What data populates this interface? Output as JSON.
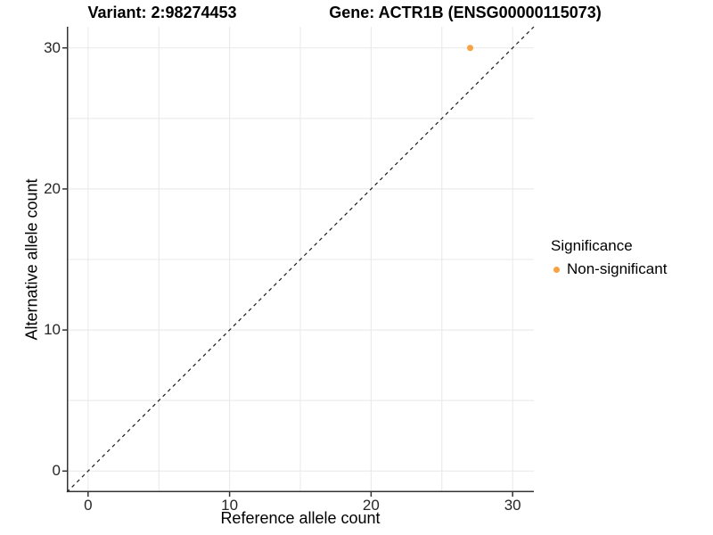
{
  "titles": {
    "left": "Variant: 2:98274453",
    "right": "Gene: ACTR1B (ENSG00000115073)"
  },
  "legend": {
    "title": "Significance",
    "items": [
      {
        "label": "Non-significant",
        "marker": "orange-dot-icon",
        "color": "#F9A242"
      }
    ]
  },
  "chart_data": {
    "type": "scatter",
    "title_left": "Variant: 2:98274453",
    "title_right": "Gene: ACTR1B (ENSG00000115073)",
    "xlabel": "Reference allele count",
    "ylabel": "Alternative allele count",
    "xlim": [
      -1.5,
      31.5
    ],
    "ylim": [
      -1.5,
      31.5
    ],
    "x_ticks": [
      0,
      10,
      20,
      30
    ],
    "y_ticks": [
      0,
      10,
      20,
      30
    ],
    "grid_values": [
      0,
      5,
      10,
      15,
      20,
      25,
      30
    ],
    "grid": true,
    "grid_color": "#E8E8E8",
    "axis_color": "#333333",
    "background": "#FFFFFF",
    "reference_line": {
      "type": "diagonal",
      "equation": "y = x",
      "style": "dashed",
      "color": "#1A1A1A"
    },
    "series": [
      {
        "name": "Non-significant",
        "color": "#F9A242",
        "marker_radius": 3.5,
        "points": [
          {
            "x": 27,
            "y": 30
          }
        ]
      }
    ],
    "legend_title": "Significance",
    "legend_position": "right"
  }
}
